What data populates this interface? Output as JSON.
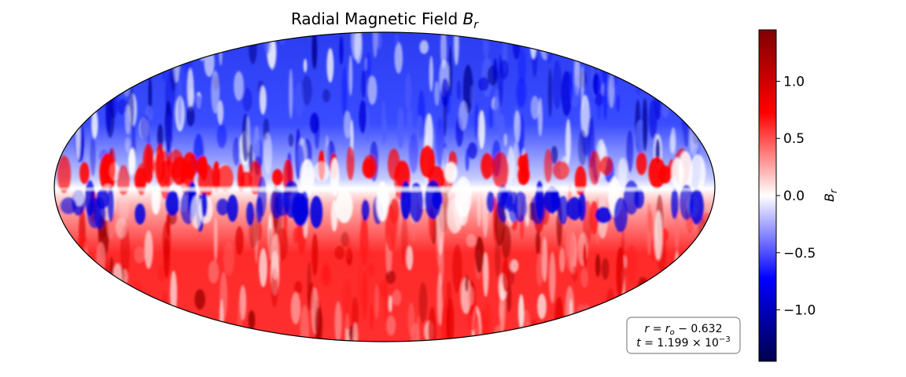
{
  "chart_data": {
    "type": "heatmap",
    "projection": "mollweide",
    "title": "Radial Magnetic Field",
    "title_symbol": "B",
    "title_subscript": "r",
    "field_description": "Br mostly negative (blue) in the northern hemisphere, mostly positive (red) in the southern hemisphere, with alternating red/blue banded structure near the equator",
    "colorbar": {
      "cmap": "seismic",
      "colors": [
        "#00004c",
        "#0000ff",
        "#ffffff",
        "#ff0000",
        "#800000"
      ],
      "vmin": -1.45,
      "vmax": 1.45,
      "ticks": [
        1.0,
        0.5,
        0.0,
        -0.5,
        -1.0
      ],
      "tick_labels": [
        "1.0",
        "0.5",
        "0.0",
        "−0.5",
        "−1.0"
      ],
      "label_symbol": "B",
      "label_subscript": "r"
    },
    "annotation": {
      "line1": {
        "lhs": "r",
        "lhs_sub": "",
        "eq": " = ",
        "rhs": "r",
        "rhs_sub": "o",
        "tail": " −  0.632"
      },
      "line2": {
        "lhs": "t",
        "eq": " = ",
        "mantissa": "1.199 × 10",
        "exponent": "−3"
      }
    }
  }
}
